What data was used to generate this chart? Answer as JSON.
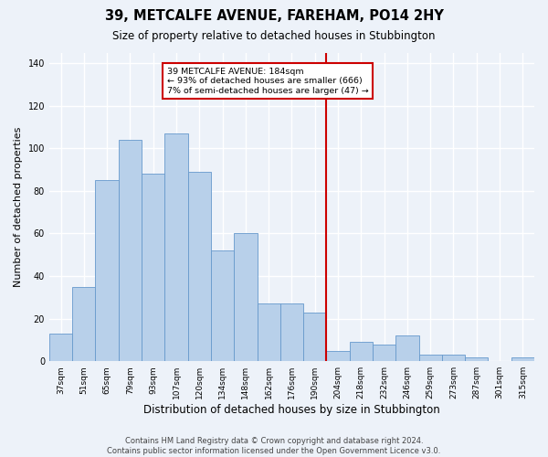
{
  "title": "39, METCALFE AVENUE, FAREHAM, PO14 2HY",
  "subtitle": "Size of property relative to detached houses in Stubbington",
  "xlabel": "Distribution of detached houses by size in Stubbington",
  "ylabel": "Number of detached properties",
  "bar_labels": [
    "37sqm",
    "51sqm",
    "65sqm",
    "79sqm",
    "93sqm",
    "107sqm",
    "120sqm",
    "134sqm",
    "148sqm",
    "162sqm",
    "176sqm",
    "190sqm",
    "204sqm",
    "218sqm",
    "232sqm",
    "246sqm",
    "259sqm",
    "273sqm",
    "287sqm",
    "301sqm",
    "315sqm"
  ],
  "bar_values": [
    13,
    35,
    85,
    104,
    88,
    107,
    89,
    52,
    60,
    27,
    27,
    23,
    5,
    9,
    8,
    12,
    3,
    3,
    2,
    0,
    2
  ],
  "bar_color": "#b8d0ea",
  "bar_edge_color": "#6699cc",
  "vline_color": "#cc0000",
  "annotation_text": "39 METCALFE AVENUE: 184sqm\n← 93% of detached houses are smaller (666)\n7% of semi-detached houses are larger (47) →",
  "annotation_box_color": "#ffffff",
  "annotation_box_edge": "#cc0000",
  "ylim": [
    0,
    145
  ],
  "yticks": [
    0,
    20,
    40,
    60,
    80,
    100,
    120,
    140
  ],
  "footer": "Contains HM Land Registry data © Crown copyright and database right 2024.\nContains public sector information licensed under the Open Government Licence v3.0.",
  "bg_color": "#edf2f9",
  "grid_color": "#ffffff",
  "title_fontsize": 10.5,
  "subtitle_fontsize": 8.5,
  "axis_label_fontsize": 8,
  "tick_fontsize": 6.5,
  "footer_fontsize": 6,
  "vline_bar_index": 11.5
}
